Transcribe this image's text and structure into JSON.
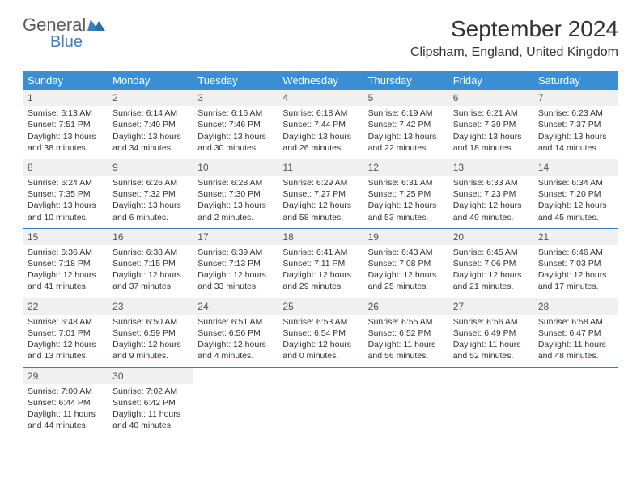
{
  "logo": {
    "line1": "General",
    "line2": "Blue"
  },
  "title": "September 2024",
  "location": "Clipsham, England, United Kingdom",
  "colors": {
    "header_bg": "#3a8fd4",
    "header_text": "#ffffff",
    "row_divider": "#3a7fc4",
    "daynum_bg": "#f0f0f0",
    "text": "#333333",
    "logo_gray": "#5a5a5a",
    "logo_blue": "#3a7fc4",
    "background": "#ffffff"
  },
  "typography": {
    "title_fontsize": 28,
    "location_fontsize": 16,
    "weekday_fontsize": 13,
    "cell_fontsize": 10.5,
    "daynum_fontsize": 12
  },
  "weekdays": [
    "Sunday",
    "Monday",
    "Tuesday",
    "Wednesday",
    "Thursday",
    "Friday",
    "Saturday"
  ],
  "days": [
    {
      "n": 1,
      "sunrise": "6:13 AM",
      "sunset": "7:51 PM",
      "daylight": "13 hours and 38 minutes."
    },
    {
      "n": 2,
      "sunrise": "6:14 AM",
      "sunset": "7:49 PM",
      "daylight": "13 hours and 34 minutes."
    },
    {
      "n": 3,
      "sunrise": "6:16 AM",
      "sunset": "7:46 PM",
      "daylight": "13 hours and 30 minutes."
    },
    {
      "n": 4,
      "sunrise": "6:18 AM",
      "sunset": "7:44 PM",
      "daylight": "13 hours and 26 minutes."
    },
    {
      "n": 5,
      "sunrise": "6:19 AM",
      "sunset": "7:42 PM",
      "daylight": "13 hours and 22 minutes."
    },
    {
      "n": 6,
      "sunrise": "6:21 AM",
      "sunset": "7:39 PM",
      "daylight": "13 hours and 18 minutes."
    },
    {
      "n": 7,
      "sunrise": "6:23 AM",
      "sunset": "7:37 PM",
      "daylight": "13 hours and 14 minutes."
    },
    {
      "n": 8,
      "sunrise": "6:24 AM",
      "sunset": "7:35 PM",
      "daylight": "13 hours and 10 minutes."
    },
    {
      "n": 9,
      "sunrise": "6:26 AM",
      "sunset": "7:32 PM",
      "daylight": "13 hours and 6 minutes."
    },
    {
      "n": 10,
      "sunrise": "6:28 AM",
      "sunset": "7:30 PM",
      "daylight": "13 hours and 2 minutes."
    },
    {
      "n": 11,
      "sunrise": "6:29 AM",
      "sunset": "7:27 PM",
      "daylight": "12 hours and 58 minutes."
    },
    {
      "n": 12,
      "sunrise": "6:31 AM",
      "sunset": "7:25 PM",
      "daylight": "12 hours and 53 minutes."
    },
    {
      "n": 13,
      "sunrise": "6:33 AM",
      "sunset": "7:23 PM",
      "daylight": "12 hours and 49 minutes."
    },
    {
      "n": 14,
      "sunrise": "6:34 AM",
      "sunset": "7:20 PM",
      "daylight": "12 hours and 45 minutes."
    },
    {
      "n": 15,
      "sunrise": "6:36 AM",
      "sunset": "7:18 PM",
      "daylight": "12 hours and 41 minutes."
    },
    {
      "n": 16,
      "sunrise": "6:38 AM",
      "sunset": "7:15 PM",
      "daylight": "12 hours and 37 minutes."
    },
    {
      "n": 17,
      "sunrise": "6:39 AM",
      "sunset": "7:13 PM",
      "daylight": "12 hours and 33 minutes."
    },
    {
      "n": 18,
      "sunrise": "6:41 AM",
      "sunset": "7:11 PM",
      "daylight": "12 hours and 29 minutes."
    },
    {
      "n": 19,
      "sunrise": "6:43 AM",
      "sunset": "7:08 PM",
      "daylight": "12 hours and 25 minutes."
    },
    {
      "n": 20,
      "sunrise": "6:45 AM",
      "sunset": "7:06 PM",
      "daylight": "12 hours and 21 minutes."
    },
    {
      "n": 21,
      "sunrise": "6:46 AM",
      "sunset": "7:03 PM",
      "daylight": "12 hours and 17 minutes."
    },
    {
      "n": 22,
      "sunrise": "6:48 AM",
      "sunset": "7:01 PM",
      "daylight": "12 hours and 13 minutes."
    },
    {
      "n": 23,
      "sunrise": "6:50 AM",
      "sunset": "6:59 PM",
      "daylight": "12 hours and 9 minutes."
    },
    {
      "n": 24,
      "sunrise": "6:51 AM",
      "sunset": "6:56 PM",
      "daylight": "12 hours and 4 minutes."
    },
    {
      "n": 25,
      "sunrise": "6:53 AM",
      "sunset": "6:54 PM",
      "daylight": "12 hours and 0 minutes."
    },
    {
      "n": 26,
      "sunrise": "6:55 AM",
      "sunset": "6:52 PM",
      "daylight": "11 hours and 56 minutes."
    },
    {
      "n": 27,
      "sunrise": "6:56 AM",
      "sunset": "6:49 PM",
      "daylight": "11 hours and 52 minutes."
    },
    {
      "n": 28,
      "sunrise": "6:58 AM",
      "sunset": "6:47 PM",
      "daylight": "11 hours and 48 minutes."
    },
    {
      "n": 29,
      "sunrise": "7:00 AM",
      "sunset": "6:44 PM",
      "daylight": "11 hours and 44 minutes."
    },
    {
      "n": 30,
      "sunrise": "7:02 AM",
      "sunset": "6:42 PM",
      "daylight": "11 hours and 40 minutes."
    }
  ],
  "labels": {
    "sunrise": "Sunrise:",
    "sunset": "Sunset:",
    "daylight": "Daylight:"
  },
  "layout": {
    "first_weekday_index": 0,
    "weeks": 5,
    "cols": 7
  }
}
